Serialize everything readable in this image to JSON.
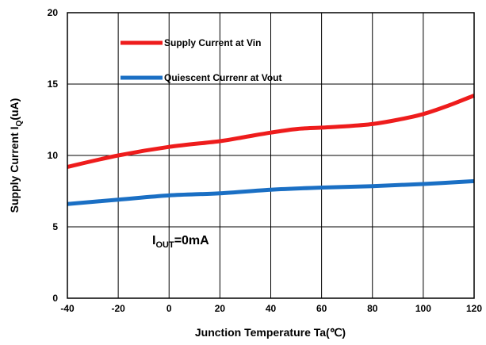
{
  "chart_data": {
    "type": "line",
    "xlabel": "Junction Temperature Ta(℃)",
    "ylabel_main": "Supply Current I",
    "ylabel_sub": "Q",
    "ylabel_unit": "(uA)",
    "xlim": [
      -40,
      120
    ],
    "ylim": [
      0,
      20
    ],
    "xticks": [
      "-40",
      "-20",
      "0",
      "20",
      "40",
      "60",
      "80",
      "100",
      "120"
    ],
    "yticks": [
      "0",
      "5",
      "10",
      "15",
      "20"
    ],
    "grid": true,
    "legend_position": "top-left",
    "annotation": {
      "main": "I",
      "sub": "OUT",
      "rest": "=0mA"
    },
    "series": [
      {
        "name": "Supply Current at Vin",
        "color": "#ee1c1c",
        "x": [
          -40,
          -20,
          0,
          20,
          30,
          40,
          50,
          60,
          70,
          80,
          90,
          100,
          110,
          120
        ],
        "y": [
          9.2,
          10.0,
          10.6,
          11.0,
          11.3,
          11.6,
          11.85,
          11.95,
          12.05,
          12.2,
          12.5,
          12.9,
          13.5,
          14.2
        ]
      },
      {
        "name": "Quiescent Currenr at Vout",
        "color": "#1a6fc4",
        "x": [
          -40,
          -20,
          0,
          20,
          40,
          60,
          80,
          100,
          120
        ],
        "y": [
          6.6,
          6.9,
          7.2,
          7.35,
          7.6,
          7.75,
          7.85,
          8.0,
          8.2
        ]
      }
    ]
  }
}
